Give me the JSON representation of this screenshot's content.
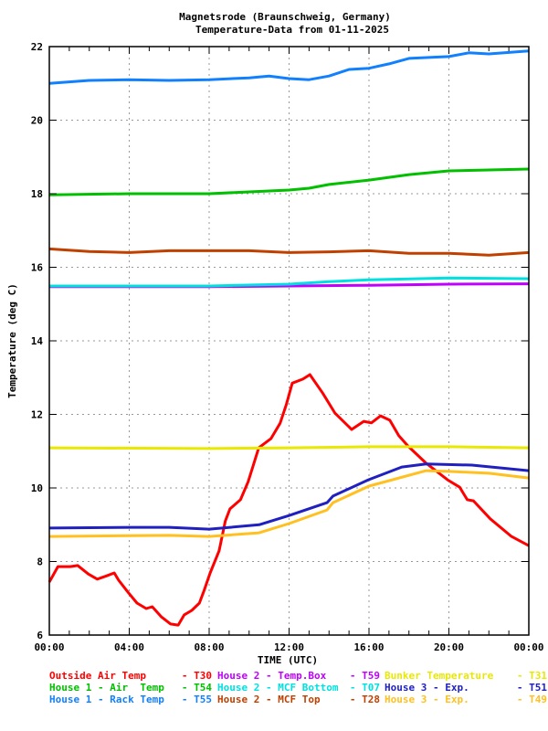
{
  "chart_data": {
    "type": "line",
    "title": "Magnetsrode (Braunschweig, Germany)",
    "subtitle": "Temperature-Data from 01-11-2025",
    "xlabel": "TIME (UTC)",
    "ylabel": "Temperature (deg C)",
    "xlim": [
      0,
      24
    ],
    "ylim": [
      6,
      22
    ],
    "grid": true,
    "legend_position": "bottom",
    "x_ticks": [
      0,
      4,
      8,
      12,
      16,
      20,
      24
    ],
    "x_tick_labels": [
      "00:00",
      "04:00",
      "08:00",
      "12:00",
      "16:00",
      "20:00",
      "00:00"
    ],
    "y_ticks": [
      6,
      8,
      10,
      12,
      14,
      16,
      18,
      20,
      22
    ],
    "y_tick_labels": [
      "6",
      "8",
      "10",
      "12",
      "14",
      "16",
      "18",
      "20",
      "22"
    ],
    "series": [
      {
        "name": "Outside Air Temp",
        "sensor": "- T30",
        "color": "#ff0000",
        "points": [
          [
            0,
            7.44
          ],
          [
            0.43,
            7.86
          ],
          [
            1.04,
            7.86
          ],
          [
            1.42,
            7.89
          ],
          [
            1.95,
            7.66
          ],
          [
            2.4,
            7.52
          ],
          [
            2.87,
            7.61
          ],
          [
            3.25,
            7.69
          ],
          [
            3.47,
            7.49
          ],
          [
            3.93,
            7.17
          ],
          [
            4.39,
            6.87
          ],
          [
            4.85,
            6.72
          ],
          [
            5.15,
            6.77
          ],
          [
            5.6,
            6.5
          ],
          [
            6.07,
            6.3
          ],
          [
            6.45,
            6.27
          ],
          [
            6.75,
            6.55
          ],
          [
            7.13,
            6.67
          ],
          [
            7.51,
            6.87
          ],
          [
            7.74,
            7.2
          ],
          [
            8.05,
            7.69
          ],
          [
            8.5,
            8.29
          ],
          [
            8.81,
            9.1
          ],
          [
            9.04,
            9.43
          ],
          [
            9.57,
            9.68
          ],
          [
            9.95,
            10.17
          ],
          [
            10.48,
            11.09
          ],
          [
            11.09,
            11.34
          ],
          [
            11.55,
            11.76
          ],
          [
            11.86,
            12.26
          ],
          [
            12.16,
            12.85
          ],
          [
            12.69,
            12.96
          ],
          [
            13.04,
            13.08
          ],
          [
            13.68,
            12.58
          ],
          [
            14.29,
            12.04
          ],
          [
            15.13,
            11.59
          ],
          [
            15.74,
            11.81
          ],
          [
            16.12,
            11.77
          ],
          [
            16.58,
            11.96
          ],
          [
            17.04,
            11.84
          ],
          [
            17.49,
            11.42
          ],
          [
            17.95,
            11.14
          ],
          [
            18.86,
            10.67
          ],
          [
            19.93,
            10.22
          ],
          [
            20.54,
            10.02
          ],
          [
            20.92,
            9.68
          ],
          [
            21.23,
            9.65
          ],
          [
            22.07,
            9.16
          ],
          [
            23.13,
            8.68
          ],
          [
            24,
            8.43
          ]
        ]
      },
      {
        "name": "House 2 - Temp.Box",
        "sensor": "- T59",
        "color": "#c000ff",
        "points": [
          [
            0,
            15.47
          ],
          [
            8,
            15.47
          ],
          [
            12,
            15.49
          ],
          [
            16,
            15.51
          ],
          [
            20,
            15.54
          ],
          [
            24,
            15.55
          ]
        ]
      },
      {
        "name": "Bunker Temperature",
        "sensor": "- T31",
        "color": "#e8e800",
        "points": [
          [
            0,
            11.09
          ],
          [
            8,
            11.07
          ],
          [
            12,
            11.09
          ],
          [
            16,
            11.12
          ],
          [
            20,
            11.12
          ],
          [
            24,
            11.09
          ]
        ]
      },
      {
        "name": "House 1 - Air  Temp",
        "sensor": "- T54",
        "color": "#00c000",
        "points": [
          [
            0,
            17.97
          ],
          [
            4,
            18.0
          ],
          [
            8,
            18.0
          ],
          [
            10,
            18.05
          ],
          [
            12,
            18.1
          ],
          [
            13,
            18.15
          ],
          [
            14,
            18.25
          ],
          [
            16,
            18.37
          ],
          [
            18,
            18.52
          ],
          [
            20,
            18.62
          ],
          [
            24,
            18.67
          ]
        ]
      },
      {
        "name": "House 2 - MCF Bottom",
        "sensor": "- T07",
        "color": "#00e0e0",
        "points": [
          [
            0,
            15.49
          ],
          [
            8,
            15.49
          ],
          [
            12,
            15.54
          ],
          [
            14,
            15.61
          ],
          [
            16,
            15.66
          ],
          [
            20,
            15.71
          ],
          [
            24,
            15.69
          ]
        ]
      },
      {
        "name": "House 3 - Exp.",
        "sensor": "- T51",
        "color": "#2020c0",
        "points": [
          [
            0,
            8.91
          ],
          [
            4.2,
            8.93
          ],
          [
            6,
            8.93
          ],
          [
            8,
            8.88
          ],
          [
            10.5,
            9.0
          ],
          [
            12,
            9.25
          ],
          [
            13.9,
            9.6
          ],
          [
            14.2,
            9.78
          ],
          [
            15.97,
            10.22
          ],
          [
            17.64,
            10.57
          ],
          [
            18.86,
            10.65
          ],
          [
            21.15,
            10.62
          ],
          [
            24,
            10.47
          ]
        ]
      },
      {
        "name": "House 1 - Rack Temp",
        "sensor": "- T55",
        "color": "#1080ff",
        "points": [
          [
            0,
            21.0
          ],
          [
            2,
            21.08
          ],
          [
            4,
            21.1
          ],
          [
            6,
            21.08
          ],
          [
            8,
            21.1
          ],
          [
            10,
            21.15
          ],
          [
            11,
            21.2
          ],
          [
            12,
            21.13
          ],
          [
            13,
            21.1
          ],
          [
            14,
            21.2
          ],
          [
            15,
            21.38
          ],
          [
            16,
            21.41
          ],
          [
            17,
            21.53
          ],
          [
            18,
            21.68
          ],
          [
            20,
            21.73
          ],
          [
            21,
            21.83
          ],
          [
            22,
            21.8
          ],
          [
            24,
            21.88
          ]
        ]
      },
      {
        "name": "House 2 - MCF Top",
        "sensor": "- T28",
        "color": "#c04000",
        "points": [
          [
            0,
            16.5
          ],
          [
            2,
            16.43
          ],
          [
            4,
            16.4
          ],
          [
            6,
            16.45
          ],
          [
            8,
            16.45
          ],
          [
            10,
            16.45
          ],
          [
            12,
            16.4
          ],
          [
            14,
            16.42
          ],
          [
            16,
            16.45
          ],
          [
            18,
            16.38
          ],
          [
            20,
            16.38
          ],
          [
            22,
            16.33
          ],
          [
            24,
            16.4
          ]
        ]
      },
      {
        "name": "House 3 - Exp.",
        "sensor": "- T49",
        "color": "#ffc020",
        "points": [
          [
            0,
            8.68
          ],
          [
            6,
            8.71
          ],
          [
            8,
            8.68
          ],
          [
            10.5,
            8.78
          ],
          [
            12,
            9.03
          ],
          [
            13.9,
            9.4
          ],
          [
            14.2,
            9.6
          ],
          [
            16,
            10.05
          ],
          [
            18.86,
            10.47
          ],
          [
            20,
            10.45
          ],
          [
            22,
            10.4
          ],
          [
            24,
            10.27
          ]
        ]
      }
    ]
  }
}
